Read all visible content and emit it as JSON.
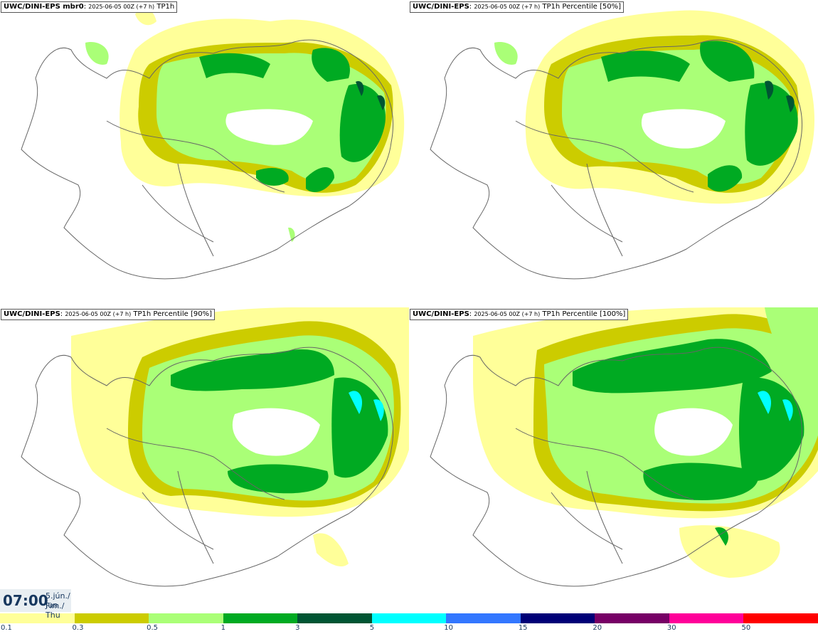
{
  "panels": [
    {
      "model": "UWC/DINI-EPS mbr0",
      "run": "2025-06-05 00Z (+7 h)",
      "field": "TP1h"
    },
    {
      "model": "UWC/DINI-EPS",
      "run": "2025-06-05 00Z (+7 h)",
      "field": "TP1h Percentile [50%]"
    },
    {
      "model": "UWC/DINI-EPS",
      "run": "2025-06-05 00Z (+7 h)",
      "field": "TP1h Percentile [90%]"
    },
    {
      "model": "UWC/DINI-EPS",
      "run": "2025-06-05 00Z (+7 h)",
      "field": "TP1h Percentile [100%]"
    }
  ],
  "valid_time": {
    "time": "07:00",
    "date_line1": "5.jún./ Jun",
    "date_line2": "Fim./ Thu"
  },
  "legend": {
    "colors": [
      "#ffff99",
      "#cccc00",
      "#aaff77",
      "#00aa22",
      "#005533",
      "#00ffff",
      "#3377ff",
      "#000077",
      "#770066",
      "#ff0099",
      "#ff0000"
    ],
    "ticks": [
      "0.1",
      "0.3",
      "0.5",
      "1",
      "3",
      "5",
      "10",
      "15",
      "20",
      "30",
      "50"
    ]
  }
}
